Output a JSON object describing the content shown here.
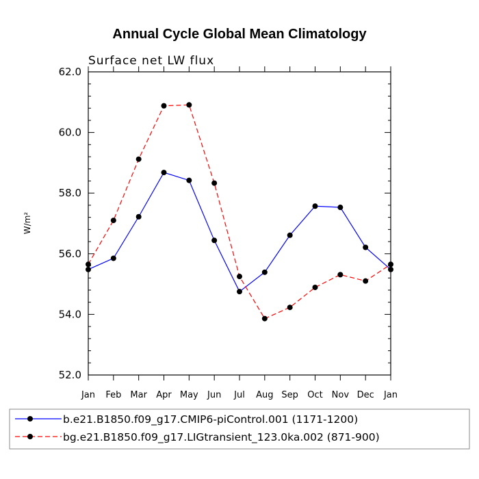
{
  "chart_data": {
    "type": "line",
    "title": "Annual Cycle Global Mean Climatology",
    "subtitle": "Surface net LW flux",
    "ylabel": "W/m²",
    "ylim": [
      52,
      62
    ],
    "yticks": [
      "52.0",
      "54.0",
      "56.0",
      "58.0",
      "60.0",
      "62.0"
    ],
    "categories": [
      "Jan",
      "Feb",
      "Mar",
      "Apr",
      "May",
      "Jun",
      "Jul",
      "Aug",
      "Sep",
      "Oct",
      "Nov",
      "Dec",
      "Jan"
    ],
    "series": [
      {
        "name": "b.e21.B1850.f09_g17.CMIP6-piControl.001 (1171-1200)",
        "color": "#0000ff",
        "dash": "solid",
        "values": [
          55.48,
          55.85,
          57.22,
          58.68,
          58.42,
          56.44,
          54.75,
          55.39,
          56.61,
          57.57,
          57.53,
          56.21,
          55.48
        ]
      },
      {
        "name": "bg.e21.B1850.f09_g17.LIGtransient_123.0ka.002 (871-900)",
        "color": "#ff0000",
        "dash": "dashed",
        "values": [
          55.65,
          57.1,
          59.12,
          60.88,
          60.91,
          58.33,
          55.25,
          53.86,
          54.23,
          54.89,
          55.31,
          55.1,
          55.65
        ]
      }
    ]
  }
}
